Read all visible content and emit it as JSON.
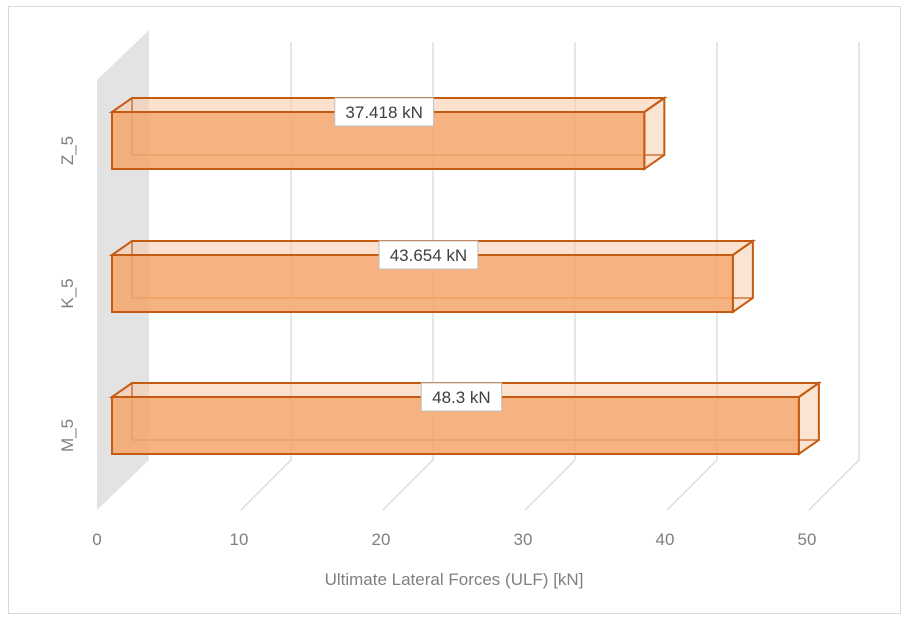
{
  "chart_data": {
    "type": "bar",
    "orientation": "horizontal",
    "style": "3d-clustered-bar",
    "categories": [
      "M_5",
      "K_5",
      "Z_5"
    ],
    "values": [
      48.3,
      43.654,
      37.418
    ],
    "data_labels": [
      "48.3 kN",
      "43.654 kN",
      "37.418 kN"
    ],
    "title": "",
    "xlabel": "Ultimate Lateral Forces (ULF) [kN]",
    "ylabel": "",
    "xlim": [
      0,
      50
    ],
    "xticks": [
      "0",
      "10",
      "20",
      "30",
      "40",
      "50"
    ],
    "grid": true,
    "legend": "none",
    "colors": {
      "bar_fill": "#f4a46b",
      "bar_fill_light": "#f9c9a6",
      "bar_edge": "#c55a11",
      "grid": "#d9d9d9",
      "side_wall": "#e3e3e3"
    }
  }
}
